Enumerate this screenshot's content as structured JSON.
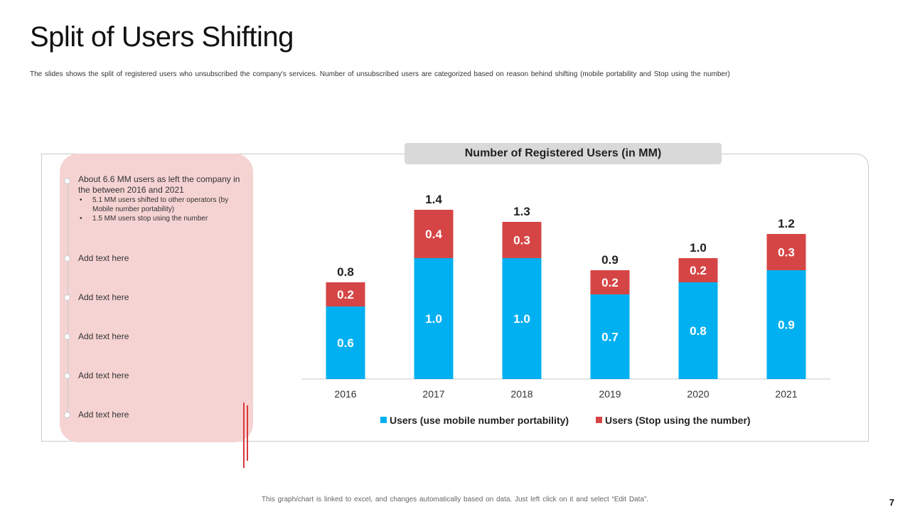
{
  "slide": {
    "title": "Split of Users Shifting",
    "subtitle": "The slides shows the split of registered users who unsubscribed the company's services. Number of unsubscribed users are categorized based on reason behind shifting (mobile portability and Stop using the number)",
    "footer": "This graph/chart is linked to excel, and changes automatically  based on data. Just left click on it and select “Edit Data”.",
    "page_number": "7"
  },
  "side_panel": {
    "intro_text": "About 6.6 MM users as left the company in the between 2016 and 2021",
    "bullets": [
      "5.1 MM users shifted to other operators (by Mobile number portability)",
      "1.5 MM users stop using the number"
    ],
    "items": [
      "Add text here",
      "Add text here",
      "Add text here",
      "Add text here",
      "Add text here"
    ]
  },
  "chart_data": {
    "type": "bar",
    "stacked": true,
    "title": "Number of Registered Users (in MM)",
    "categories": [
      "2016",
      "2017",
      "2018",
      "2019",
      "2020",
      "2021"
    ],
    "series": [
      {
        "name": "Users  (use mobile number portability)",
        "color": "#00b0f0",
        "values": [
          0.6,
          1.0,
          1.0,
          0.7,
          0.8,
          0.9
        ]
      },
      {
        "name": "Users  (Stop using the number)",
        "color": "#d64545",
        "values": [
          0.2,
          0.4,
          0.3,
          0.2,
          0.2,
          0.3
        ]
      }
    ],
    "totals": [
      0.8,
      1.4,
      1.3,
      0.9,
      1.0,
      1.2
    ],
    "ylim": [
      0,
      1.6
    ],
    "xlabel": "",
    "ylabel": "",
    "grid": false,
    "legend": "bottom"
  }
}
